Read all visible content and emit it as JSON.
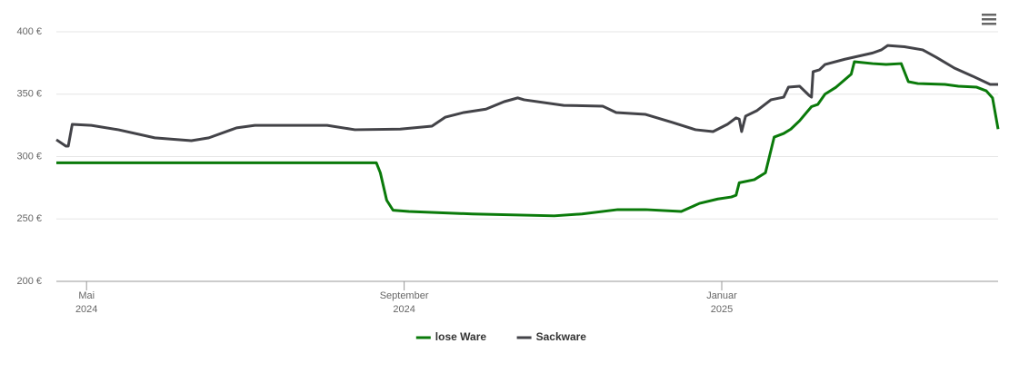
{
  "chart_data": {
    "type": "line",
    "xlim": [
      3.62,
      15.48
    ],
    "xticks": [
      {
        "value": 4,
        "label": "Mai 2024"
      },
      {
        "value": 8,
        "label": "September 2024"
      },
      {
        "value": 12,
        "label": "Januar 2025"
      }
    ],
    "ylim": [
      200,
      400
    ],
    "yticks": [
      {
        "value": 200,
        "label": "200 €"
      },
      {
        "value": 250,
        "label": "250 €"
      },
      {
        "value": 300,
        "label": "300 €"
      },
      {
        "value": 350,
        "label": "350 €"
      },
      {
        "value": 400,
        "label": "400 €"
      }
    ],
    "grid": true,
    "legend": "bottom",
    "series": [
      {
        "name": "lose Ware",
        "color": "#0a7a0a",
        "x": [
          3.62,
          7.65,
          7.7,
          7.78,
          7.86,
          8.06,
          8.86,
          9.89,
          10.24,
          10.69,
          11.04,
          11.49,
          11.72,
          11.95,
          12.12,
          12.18,
          12.22,
          12.41,
          12.55,
          12.66,
          12.78,
          12.87,
          12.98,
          13.13,
          13.21,
          13.3,
          13.44,
          13.63,
          13.67,
          13.9,
          14.07,
          14.26,
          14.35,
          14.47,
          14.81,
          14.98,
          15.21,
          15.33,
          15.41,
          15.48
        ],
        "values": [
          295,
          295,
          287,
          265,
          257,
          256,
          254,
          252.5,
          254,
          257.5,
          257.5,
          256,
          262.5,
          266,
          267.6,
          269,
          279,
          281.5,
          287,
          315.6,
          318.5,
          322,
          328.7,
          340,
          341.8,
          350,
          355.6,
          366,
          376,
          374.5,
          373.8,
          374.5,
          360,
          358.5,
          357.8,
          356.4,
          355.6,
          352.7,
          347,
          322
        ]
      },
      {
        "name": "Sackware",
        "color": "#434348",
        "x": [
          3.62,
          3.74,
          3.77,
          3.82,
          4.06,
          4.4,
          4.86,
          5.32,
          5.54,
          5.89,
          6.12,
          7.03,
          7.38,
          7.95,
          8.35,
          8.52,
          8.75,
          9.03,
          9.26,
          9.43,
          9.51,
          10.01,
          10.5,
          10.67,
          11.04,
          11.38,
          11.67,
          11.89,
          12.07,
          12.18,
          12.22,
          12.25,
          12.3,
          12.44,
          12.62,
          12.78,
          12.84,
          12.98,
          13.1,
          13.13,
          13.15,
          13.23,
          13.3,
          13.55,
          13.9,
          14.01,
          14.09,
          14.3,
          14.53,
          14.7,
          14.93,
          15.16,
          15.38,
          15.48
        ],
        "values": [
          313.5,
          308.4,
          308.4,
          325.8,
          325,
          321.5,
          315,
          312.7,
          315,
          323,
          325,
          325,
          321.5,
          322,
          324.4,
          331.6,
          335.3,
          338,
          344,
          347,
          345.5,
          341,
          340.4,
          335.3,
          333.8,
          327.3,
          321.5,
          320,
          325.8,
          331,
          330,
          320,
          332.4,
          336.7,
          345.5,
          347.6,
          355.6,
          356.4,
          349,
          347.6,
          368,
          369.5,
          373.8,
          378,
          383,
          385.5,
          389,
          388,
          385.5,
          379.6,
          370.9,
          364.4,
          357.8,
          357.8
        ]
      }
    ]
  }
}
